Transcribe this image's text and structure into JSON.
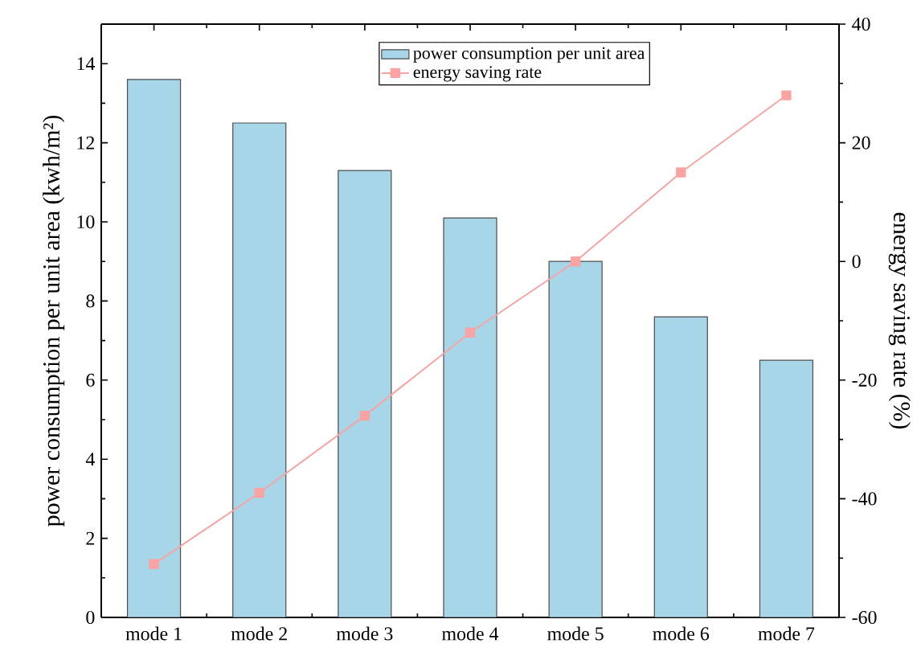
{
  "chart_data": {
    "type": "bar",
    "categories": [
      "mode 1",
      "mode 2",
      "mode 3",
      "mode 4",
      "mode 5",
      "mode 6",
      "mode 7"
    ],
    "ylabel": "power consumption per unit area (kwh/m²)",
    "y2label": "energy saving rate (%)",
    "series": [
      {
        "name": "power consumption per unit area",
        "color": "#a6d6e8",
        "values": [
          13.6,
          12.5,
          11.3,
          10.1,
          9.0,
          7.6,
          6.5
        ]
      },
      {
        "name": "energy saving rate",
        "type": "line",
        "axis": "y2",
        "color": "#f9a3a3",
        "marker": "square",
        "values": [
          -51,
          -39,
          -26,
          -12,
          0,
          15,
          28
        ]
      }
    ],
    "ylim": [
      0,
      15
    ],
    "yticks": [
      0,
      2,
      4,
      6,
      8,
      10,
      12,
      14
    ],
    "y2lim": [
      -60,
      40
    ],
    "y2ticks": [
      -60,
      -40,
      -20,
      0,
      20,
      40
    ],
    "legend": "top",
    "grid": false
  }
}
